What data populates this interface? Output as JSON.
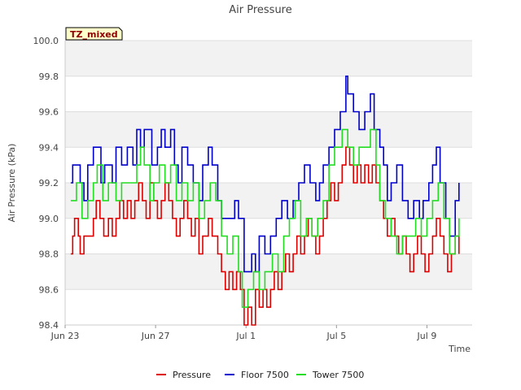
{
  "chart_data": {
    "type": "line",
    "title": "Air Pressure",
    "xlabel": "Time",
    "ylabel": "Air Pressure (kPa)",
    "badge": "TZ_mixed",
    "ylim": [
      98.4,
      100.0
    ],
    "yticks": [
      "98.4",
      "98.6",
      "98.8",
      "99.0",
      "99.2",
      "99.4",
      "99.6",
      "99.8",
      "100.0"
    ],
    "xlim": [
      "2023-06-23",
      "2023-07-11"
    ],
    "xticks": [
      {
        "label": "Jun 23",
        "date": "2023-06-23"
      },
      {
        "label": "Jun 27",
        "date": "2023-06-27"
      },
      {
        "label": "Jul 1",
        "date": "2023-07-01"
      },
      {
        "label": "Jul 5",
        "date": "2023-07-05"
      },
      {
        "label": "Jul 9",
        "date": "2023-07-09"
      }
    ],
    "grid": "horizontal bands",
    "legend_position": "bottom",
    "series": [
      {
        "name": "Pressure",
        "color": "#dd0000",
        "points": [
          [
            "2023-06-23T06:00",
            98.8
          ],
          [
            "2023-06-23T08:00",
            98.9
          ],
          [
            "2023-06-23T10:00",
            99.0
          ],
          [
            "2023-06-23T14:00",
            98.9
          ],
          [
            "2023-06-23T16:00",
            98.8
          ],
          [
            "2023-06-23T20:00",
            98.9
          ],
          [
            "2023-06-24T00:00",
            98.9
          ],
          [
            "2023-06-24T06:00",
            99.0
          ],
          [
            "2023-06-24T09:00",
            99.1
          ],
          [
            "2023-06-24T13:00",
            99.0
          ],
          [
            "2023-06-24T17:00",
            98.9
          ],
          [
            "2023-06-24T22:00",
            99.0
          ],
          [
            "2023-06-25T02:00",
            98.9
          ],
          [
            "2023-06-25T06:00",
            99.0
          ],
          [
            "2023-06-25T10:00",
            99.1
          ],
          [
            "2023-06-25T14:00",
            99.0
          ],
          [
            "2023-06-25T18:00",
            99.1
          ],
          [
            "2023-06-25T22:00",
            99.0
          ],
          [
            "2023-06-26T02:00",
            99.1
          ],
          [
            "2023-06-26T06:00",
            99.2
          ],
          [
            "2023-06-26T10:00",
            99.1
          ],
          [
            "2023-06-26T14:00",
            99.0
          ],
          [
            "2023-06-26T18:00",
            99.2
          ],
          [
            "2023-06-26T22:00",
            99.1
          ],
          [
            "2023-06-27T02:00",
            99.0
          ],
          [
            "2023-06-27T06:00",
            99.1
          ],
          [
            "2023-06-27T10:00",
            99.2
          ],
          [
            "2023-06-27T14:00",
            99.1
          ],
          [
            "2023-06-27T18:00",
            99.0
          ],
          [
            "2023-06-27T22:00",
            98.9
          ],
          [
            "2023-06-28T02:00",
            99.0
          ],
          [
            "2023-06-28T06:00",
            99.1
          ],
          [
            "2023-06-28T10:00",
            99.0
          ],
          [
            "2023-06-28T14:00",
            98.9
          ],
          [
            "2023-06-28T18:00",
            99.0
          ],
          [
            "2023-06-28T22:00",
            98.8
          ],
          [
            "2023-06-29T02:00",
            98.9
          ],
          [
            "2023-06-29T08:00",
            99.0
          ],
          [
            "2023-06-29T12:00",
            98.9
          ],
          [
            "2023-06-29T18:00",
            98.8
          ],
          [
            "2023-06-29T22:00",
            98.7
          ],
          [
            "2023-06-30T02:00",
            98.6
          ],
          [
            "2023-06-30T06:00",
            98.7
          ],
          [
            "2023-06-30T10:00",
            98.6
          ],
          [
            "2023-06-30T14:00",
            98.7
          ],
          [
            "2023-06-30T18:00",
            98.6
          ],
          [
            "2023-06-30T22:00",
            98.4
          ],
          [
            "2023-07-01T02:00",
            98.5
          ],
          [
            "2023-07-01T06:00",
            98.4
          ],
          [
            "2023-07-01T10:00",
            98.6
          ],
          [
            "2023-07-01T14:00",
            98.5
          ],
          [
            "2023-07-01T18:00",
            98.6
          ],
          [
            "2023-07-01T22:00",
            98.5
          ],
          [
            "2023-07-02T02:00",
            98.6
          ],
          [
            "2023-07-02T06:00",
            98.7
          ],
          [
            "2023-07-02T10:00",
            98.6
          ],
          [
            "2023-07-02T14:00",
            98.7
          ],
          [
            "2023-07-02T18:00",
            98.8
          ],
          [
            "2023-07-02T22:00",
            98.7
          ],
          [
            "2023-07-03T02:00",
            98.8
          ],
          [
            "2023-07-03T06:00",
            98.9
          ],
          [
            "2023-07-03T10:00",
            98.8
          ],
          [
            "2023-07-03T14:00",
            98.9
          ],
          [
            "2023-07-03T18:00",
            99.0
          ],
          [
            "2023-07-03T22:00",
            98.9
          ],
          [
            "2023-07-04T02:00",
            98.8
          ],
          [
            "2023-07-04T06:00",
            98.9
          ],
          [
            "2023-07-04T10:00",
            99.0
          ],
          [
            "2023-07-04T14:00",
            99.1
          ],
          [
            "2023-07-04T18:00",
            99.2
          ],
          [
            "2023-07-04T22:00",
            99.1
          ],
          [
            "2023-07-05T02:00",
            99.2
          ],
          [
            "2023-07-05T06:00",
            99.3
          ],
          [
            "2023-07-05T10:00",
            99.4
          ],
          [
            "2023-07-05T14:00",
            99.3
          ],
          [
            "2023-07-05T18:00",
            99.2
          ],
          [
            "2023-07-05T22:00",
            99.3
          ],
          [
            "2023-07-06T02:00",
            99.2
          ],
          [
            "2023-07-06T06:00",
            99.3
          ],
          [
            "2023-07-06T10:00",
            99.2
          ],
          [
            "2023-07-06T14:00",
            99.3
          ],
          [
            "2023-07-06T18:00",
            99.2
          ],
          [
            "2023-07-06T22:00",
            99.1
          ],
          [
            "2023-07-07T02:00",
            99.0
          ],
          [
            "2023-07-07T06:00",
            98.9
          ],
          [
            "2023-07-07T10:00",
            99.0
          ],
          [
            "2023-07-07T14:00",
            98.9
          ],
          [
            "2023-07-07T18:00",
            98.8
          ],
          [
            "2023-07-07T22:00",
            98.9
          ],
          [
            "2023-07-08T02:00",
            98.8
          ],
          [
            "2023-07-08T06:00",
            98.7
          ],
          [
            "2023-07-08T10:00",
            98.8
          ],
          [
            "2023-07-08T14:00",
            98.9
          ],
          [
            "2023-07-08T18:00",
            98.8
          ],
          [
            "2023-07-08T22:00",
            98.7
          ],
          [
            "2023-07-09T02:00",
            98.8
          ],
          [
            "2023-07-09T06:00",
            98.9
          ],
          [
            "2023-07-09T10:00",
            99.0
          ],
          [
            "2023-07-09T14:00",
            98.9
          ],
          [
            "2023-07-09T18:00",
            98.8
          ],
          [
            "2023-07-09T22:00",
            98.7
          ],
          [
            "2023-07-10T02:00",
            98.8
          ],
          [
            "2023-07-10T06:00",
            98.9
          ],
          [
            "2023-07-10T10:00",
            98.8
          ]
        ]
      },
      {
        "name": "Floor 7500",
        "color": "#0000cc",
        "points": [
          [
            "2023-06-23T06:00",
            99.2
          ],
          [
            "2023-06-23T08:00",
            99.3
          ],
          [
            "2023-06-23T16:00",
            99.2
          ],
          [
            "2023-06-23T20:00",
            99.1
          ],
          [
            "2023-06-24T00:00",
            99.3
          ],
          [
            "2023-06-24T06:00",
            99.4
          ],
          [
            "2023-06-24T14:00",
            99.2
          ],
          [
            "2023-06-24T18:00",
            99.3
          ],
          [
            "2023-06-25T02:00",
            99.2
          ],
          [
            "2023-06-25T06:00",
            99.4
          ],
          [
            "2023-06-25T12:00",
            99.3
          ],
          [
            "2023-06-25T18:00",
            99.4
          ],
          [
            "2023-06-26T00:00",
            99.3
          ],
          [
            "2023-06-26T04:00",
            99.5
          ],
          [
            "2023-06-26T08:00",
            99.4
          ],
          [
            "2023-06-26T12:00",
            99.5
          ],
          [
            "2023-06-26T20:00",
            99.3
          ],
          [
            "2023-06-27T02:00",
            99.4
          ],
          [
            "2023-06-27T06:00",
            99.5
          ],
          [
            "2023-06-27T10:00",
            99.4
          ],
          [
            "2023-06-27T16:00",
            99.5
          ],
          [
            "2023-06-27T20:00",
            99.3
          ],
          [
            "2023-06-28T00:00",
            99.2
          ],
          [
            "2023-06-28T04:00",
            99.4
          ],
          [
            "2023-06-28T10:00",
            99.3
          ],
          [
            "2023-06-28T16:00",
            99.2
          ],
          [
            "2023-06-28T22:00",
            99.1
          ],
          [
            "2023-06-29T02:00",
            99.3
          ],
          [
            "2023-06-29T08:00",
            99.4
          ],
          [
            "2023-06-29T12:00",
            99.3
          ],
          [
            "2023-06-29T18:00",
            99.1
          ],
          [
            "2023-06-29T22:00",
            99.0
          ],
          [
            "2023-06-30T06:00",
            99.0
          ],
          [
            "2023-06-30T12:00",
            99.1
          ],
          [
            "2023-06-30T16:00",
            99.0
          ],
          [
            "2023-06-30T22:00",
            98.7
          ],
          [
            "2023-07-01T06:00",
            98.8
          ],
          [
            "2023-07-01T10:00",
            98.7
          ],
          [
            "2023-07-01T14:00",
            98.9
          ],
          [
            "2023-07-01T20:00",
            98.8
          ],
          [
            "2023-07-02T02:00",
            98.9
          ],
          [
            "2023-07-02T08:00",
            99.0
          ],
          [
            "2023-07-02T14:00",
            99.1
          ],
          [
            "2023-07-02T20:00",
            99.0
          ],
          [
            "2023-07-03T02:00",
            99.1
          ],
          [
            "2023-07-03T08:00",
            99.2
          ],
          [
            "2023-07-03T14:00",
            99.3
          ],
          [
            "2023-07-03T20:00",
            99.2
          ],
          [
            "2023-07-04T02:00",
            99.1
          ],
          [
            "2023-07-04T06:00",
            99.2
          ],
          [
            "2023-07-04T10:00",
            99.3
          ],
          [
            "2023-07-04T16:00",
            99.4
          ],
          [
            "2023-07-04T22:00",
            99.5
          ],
          [
            "2023-07-05T04:00",
            99.6
          ],
          [
            "2023-07-05T10:00",
            99.8
          ],
          [
            "2023-07-05T12:00",
            99.7
          ],
          [
            "2023-07-05T18:00",
            99.6
          ],
          [
            "2023-07-06T00:00",
            99.5
          ],
          [
            "2023-07-06T06:00",
            99.6
          ],
          [
            "2023-07-06T12:00",
            99.7
          ],
          [
            "2023-07-06T16:00",
            99.5
          ],
          [
            "2023-07-06T22:00",
            99.4
          ],
          [
            "2023-07-07T02:00",
            99.3
          ],
          [
            "2023-07-07T06:00",
            99.1
          ],
          [
            "2023-07-07T10:00",
            99.2
          ],
          [
            "2023-07-07T16:00",
            99.3
          ],
          [
            "2023-07-07T22:00",
            99.1
          ],
          [
            "2023-07-08T04:00",
            99.0
          ],
          [
            "2023-07-08T10:00",
            99.1
          ],
          [
            "2023-07-08T16:00",
            99.0
          ],
          [
            "2023-07-08T20:00",
            99.1
          ],
          [
            "2023-07-09T02:00",
            99.2
          ],
          [
            "2023-07-09T06:00",
            99.3
          ],
          [
            "2023-07-09T10:00",
            99.4
          ],
          [
            "2023-07-09T14:00",
            99.2
          ],
          [
            "2023-07-09T20:00",
            99.0
          ],
          [
            "2023-07-10T00:00",
            98.9
          ],
          [
            "2023-07-10T06:00",
            99.1
          ],
          [
            "2023-07-10T10:00",
            99.2
          ]
        ]
      },
      {
        "name": "Tower 7500",
        "color": "#22dd22",
        "points": [
          [
            "2023-06-23T06:00",
            99.1
          ],
          [
            "2023-06-23T12:00",
            99.2
          ],
          [
            "2023-06-23T18:00",
            99.0
          ],
          [
            "2023-06-24T00:00",
            99.1
          ],
          [
            "2023-06-24T06:00",
            99.2
          ],
          [
            "2023-06-24T10:00",
            99.3
          ],
          [
            "2023-06-24T16:00",
            99.1
          ],
          [
            "2023-06-24T22:00",
            99.2
          ],
          [
            "2023-06-25T06:00",
            99.1
          ],
          [
            "2023-06-25T12:00",
            99.2
          ],
          [
            "2023-06-25T20:00",
            99.2
          ],
          [
            "2023-06-26T04:00",
            99.3
          ],
          [
            "2023-06-26T08:00",
            99.4
          ],
          [
            "2023-06-26T12:00",
            99.3
          ],
          [
            "2023-06-26T18:00",
            99.1
          ],
          [
            "2023-06-26T22:00",
            99.2
          ],
          [
            "2023-06-27T04:00",
            99.3
          ],
          [
            "2023-06-27T10:00",
            99.2
          ],
          [
            "2023-06-27T16:00",
            99.3
          ],
          [
            "2023-06-27T22:00",
            99.1
          ],
          [
            "2023-06-28T04:00",
            99.2
          ],
          [
            "2023-06-28T10:00",
            99.1
          ],
          [
            "2023-06-28T16:00",
            99.2
          ],
          [
            "2023-06-28T22:00",
            99.0
          ],
          [
            "2023-06-29T04:00",
            99.1
          ],
          [
            "2023-06-29T10:00",
            99.2
          ],
          [
            "2023-06-29T16:00",
            99.1
          ],
          [
            "2023-06-29T22:00",
            98.9
          ],
          [
            "2023-06-30T04:00",
            98.8
          ],
          [
            "2023-06-30T10:00",
            98.9
          ],
          [
            "2023-06-30T16:00",
            98.7
          ],
          [
            "2023-06-30T20:00",
            98.5
          ],
          [
            "2023-07-01T02:00",
            98.6
          ],
          [
            "2023-07-01T08:00",
            98.7
          ],
          [
            "2023-07-01T14:00",
            98.6
          ],
          [
            "2023-07-01T20:00",
            98.7
          ],
          [
            "2023-07-02T04:00",
            98.8
          ],
          [
            "2023-07-02T10:00",
            98.7
          ],
          [
            "2023-07-02T16:00",
            98.9
          ],
          [
            "2023-07-02T22:00",
            99.0
          ],
          [
            "2023-07-03T04:00",
            99.1
          ],
          [
            "2023-07-03T10:00",
            98.9
          ],
          [
            "2023-07-03T16:00",
            99.0
          ],
          [
            "2023-07-03T22:00",
            98.9
          ],
          [
            "2023-07-04T04:00",
            99.0
          ],
          [
            "2023-07-04T10:00",
            99.1
          ],
          [
            "2023-07-04T16:00",
            99.3
          ],
          [
            "2023-07-04T22:00",
            99.4
          ],
          [
            "2023-07-05T06:00",
            99.5
          ],
          [
            "2023-07-05T12:00",
            99.4
          ],
          [
            "2023-07-05T18:00",
            99.3
          ],
          [
            "2023-07-06T00:00",
            99.4
          ],
          [
            "2023-07-06T06:00",
            99.4
          ],
          [
            "2023-07-06T12:00",
            99.5
          ],
          [
            "2023-07-06T18:00",
            99.3
          ],
          [
            "2023-07-06T22:00",
            99.1
          ],
          [
            "2023-07-07T04:00",
            99.0
          ],
          [
            "2023-07-07T10:00",
            98.9
          ],
          [
            "2023-07-07T16:00",
            98.8
          ],
          [
            "2023-07-07T22:00",
            98.9
          ],
          [
            "2023-07-08T06:00",
            98.9
          ],
          [
            "2023-07-08T12:00",
            99.0
          ],
          [
            "2023-07-08T18:00",
            98.9
          ],
          [
            "2023-07-09T00:00",
            99.0
          ],
          [
            "2023-07-09T06:00",
            99.1
          ],
          [
            "2023-07-09T12:00",
            99.2
          ],
          [
            "2023-07-09T18:00",
            99.0
          ],
          [
            "2023-07-10T00:00",
            98.8
          ],
          [
            "2023-07-10T06:00",
            98.9
          ],
          [
            "2023-07-10T10:00",
            99.0
          ]
        ]
      }
    ]
  }
}
